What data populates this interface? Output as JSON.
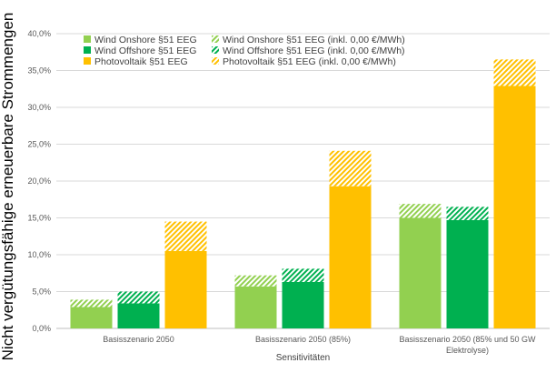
{
  "chart_data": {
    "type": "bar",
    "stacked": true,
    "categories": [
      [
        "Basisszenario 2050"
      ],
      [
        "Basisszenario 2050 (85%)"
      ],
      [
        "Basisszenario 2050 (85% und 50 GW",
        "Elektrolyse)"
      ]
    ],
    "xlabel": "Sensitivitäten",
    "ylabel": "Nicht vergütungsfähige erneuerbare Strommengen",
    "ylim": [
      0,
      40
    ],
    "y_ticks": [
      0,
      5,
      10,
      15,
      20,
      25,
      30,
      35,
      40
    ],
    "y_tick_labels": [
      "0,0%",
      "5,0%",
      "10,0%",
      "15,0%",
      "20,0%",
      "25,0%",
      "30,0%",
      "35,0%",
      "40,0%"
    ],
    "grid": true,
    "legend_position": "top",
    "technologies": [
      {
        "base": {
          "name": "Wind Onshore §51 EEG",
          "color": "#92D050",
          "values": [
            2.9,
            5.7,
            15.0
          ]
        },
        "extra": {
          "name": "Wind Onshore §51 EEG (inkl. 0,00 €/MWh)",
          "color": "#92D050",
          "hatched": true,
          "values": [
            1.0,
            1.5,
            1.9
          ]
        }
      },
      {
        "base": {
          "name": "Wind Offshore §51 EEG",
          "color": "#00B050",
          "values": [
            3.4,
            6.3,
            14.7
          ]
        },
        "extra": {
          "name": "Wind Offshore §51 EEG (inkl. 0,00 €/MWh)",
          "color": "#00B050",
          "hatched": true,
          "values": [
            1.6,
            1.8,
            1.8
          ]
        }
      },
      {
        "base": {
          "name": "Photovoltaik §51 EEG",
          "color": "#FFC000",
          "values": [
            10.5,
            19.3,
            32.9
          ]
        },
        "extra": {
          "name": "Photovoltaik §51 EEG (inkl. 0,00 €/MWh)",
          "color": "#FFC000",
          "hatched": true,
          "values": [
            4.0,
            4.8,
            3.6
          ]
        }
      }
    ]
  }
}
